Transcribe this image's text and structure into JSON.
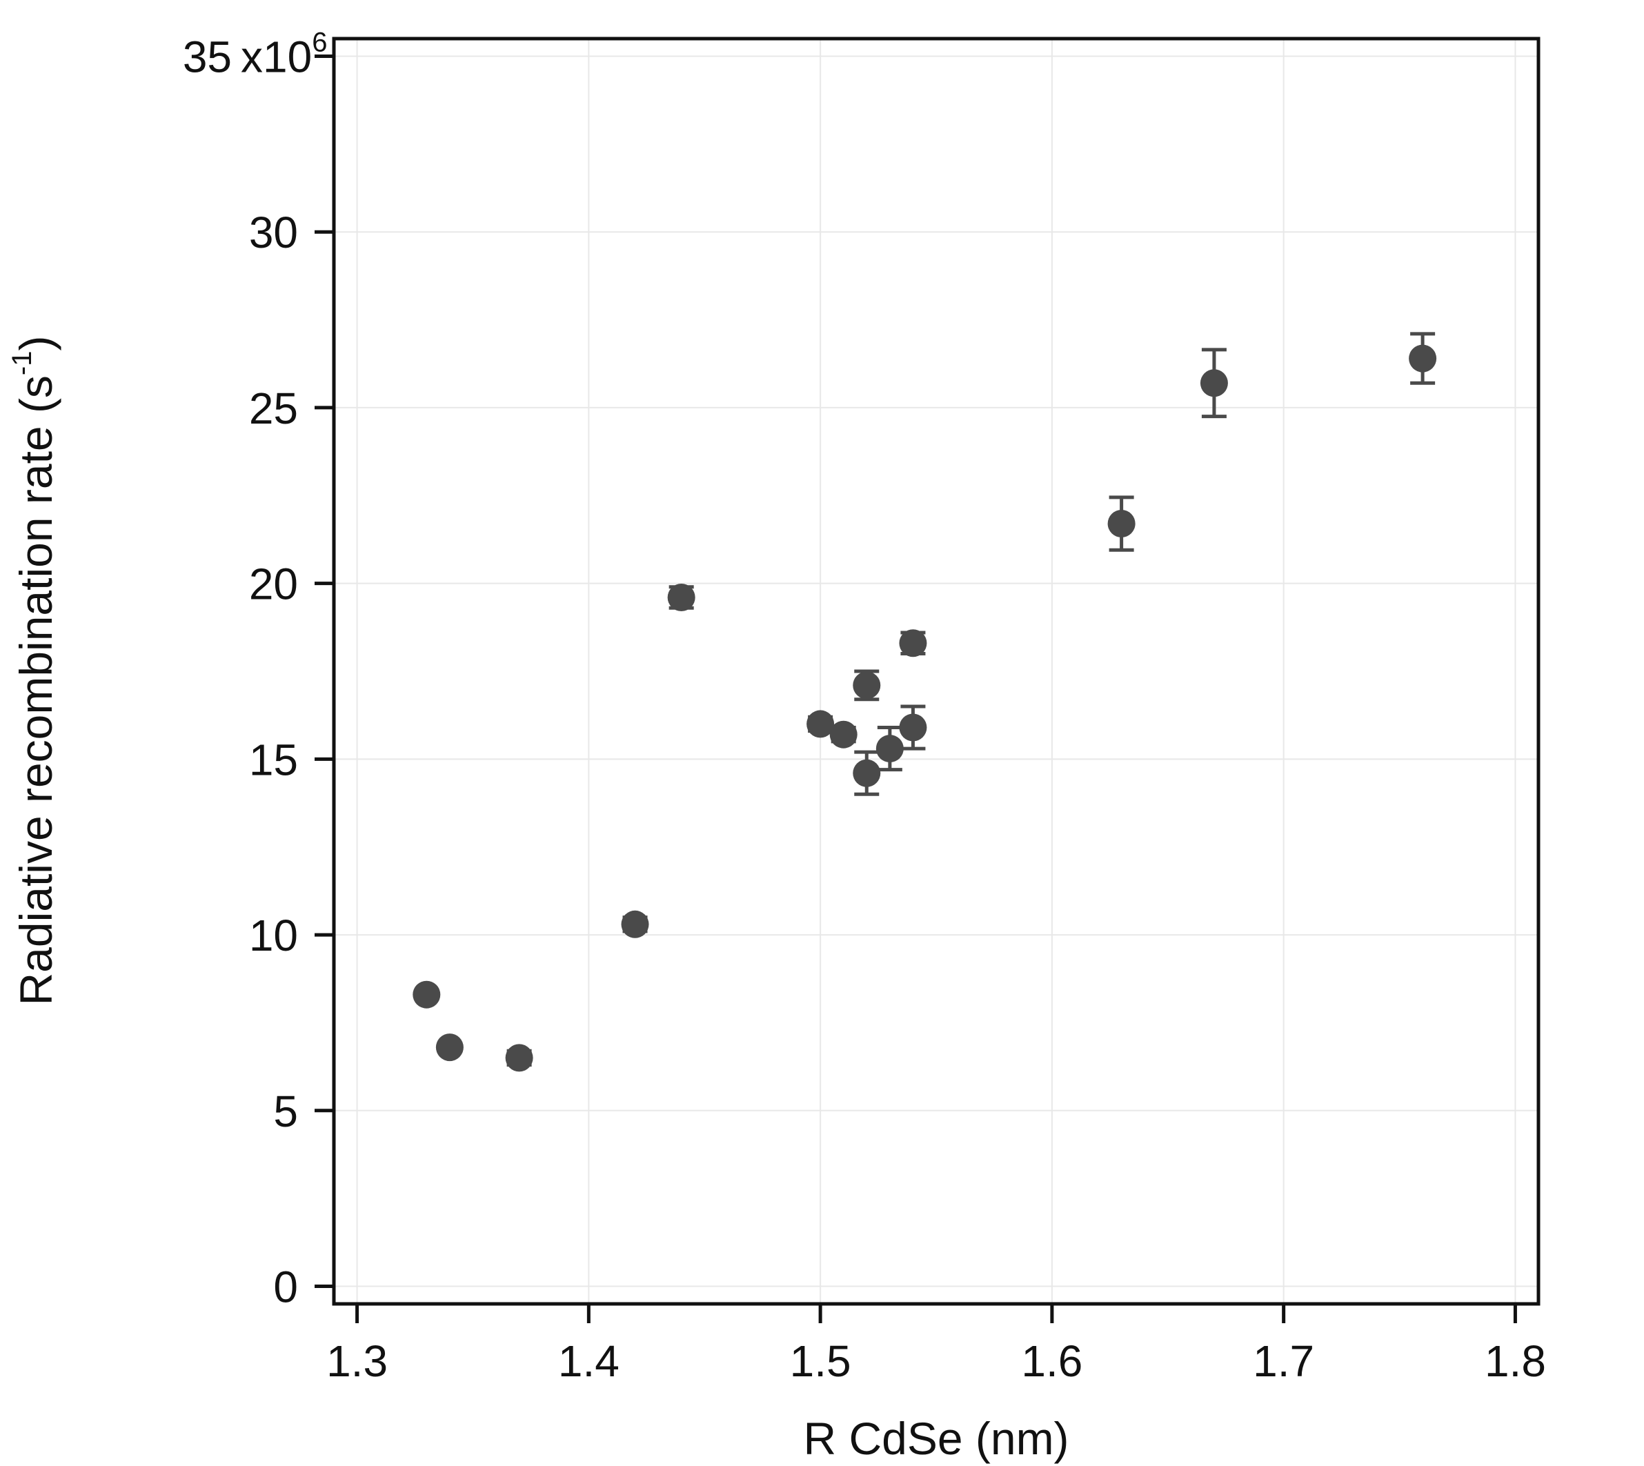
{
  "chart_data": {
    "type": "scatter",
    "xlabel": "R CdSe (nm)",
    "ylabel_main": "Radiative recombination rate (s",
    "ylabel_exp": "-1",
    "ylabel_close": ")",
    "xlim": [
      1.29,
      1.81
    ],
    "ylim": [
      -0.5,
      35.5
    ],
    "xticks": [
      1.3,
      1.4,
      1.5,
      1.6,
      1.7,
      1.8
    ],
    "xtick_labels": [
      "1.3",
      "1.4",
      "1.5",
      "1.6",
      "1.7",
      "1.8"
    ],
    "yticks": [
      0,
      5,
      10,
      15,
      20,
      25,
      30,
      35
    ],
    "ytick_labels": [
      "0",
      "5",
      "10",
      "15",
      "20",
      "25",
      "30",
      "35"
    ],
    "y_multiplier_base": "x10",
    "y_multiplier_exp": "6",
    "grid": true,
    "marker_color": "#4a4a4a",
    "points": [
      {
        "x": 1.33,
        "y": 8.3,
        "err": 0
      },
      {
        "x": 1.34,
        "y": 6.8,
        "err": 0
      },
      {
        "x": 1.37,
        "y": 6.5,
        "err": 0.2
      },
      {
        "x": 1.42,
        "y": 10.3,
        "err": 0.2
      },
      {
        "x": 1.44,
        "y": 19.6,
        "err": 0.3
      },
      {
        "x": 1.5,
        "y": 16.0,
        "err": 0.2
      },
      {
        "x": 1.51,
        "y": 15.7,
        "err": 0.2
      },
      {
        "x": 1.52,
        "y": 17.1,
        "err": 0.4
      },
      {
        "x": 1.52,
        "y": 14.6,
        "err": 0.6
      },
      {
        "x": 1.53,
        "y": 15.3,
        "err": 0.6
      },
      {
        "x": 1.54,
        "y": 18.3,
        "err": 0.3
      },
      {
        "x": 1.54,
        "y": 15.9,
        "err": 0.6
      },
      {
        "x": 1.63,
        "y": 21.7,
        "err": 0.75
      },
      {
        "x": 1.67,
        "y": 25.7,
        "err": 0.95
      },
      {
        "x": 1.76,
        "y": 26.4,
        "err": 0.7
      }
    ]
  }
}
